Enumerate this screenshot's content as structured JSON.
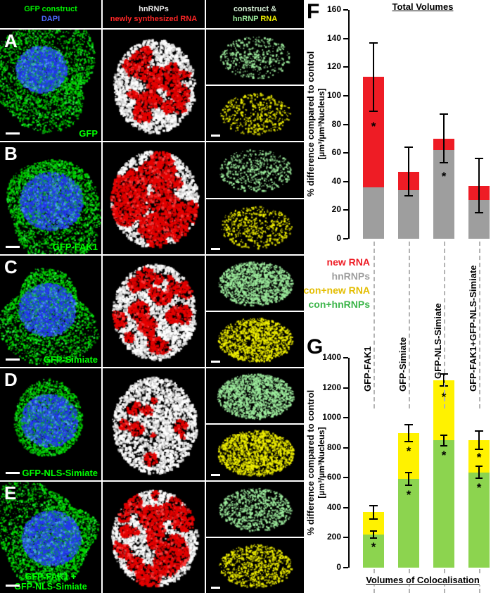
{
  "figure": {
    "panel_f_label": "F",
    "panel_g_label": "G"
  },
  "micro": {
    "headers": {
      "c1l1": "GFP construct",
      "c1l2": "DAPI",
      "c2l1": "hnRNPs",
      "c2l2": "newly synthesized RNA",
      "c3l1": "construct &",
      "c3l2a": "hnRNP",
      "c3l2b": "RNA"
    },
    "panels": [
      {
        "letter": "A",
        "label": "GFP"
      },
      {
        "letter": "B",
        "label": "GFP-FAK1"
      },
      {
        "letter": "C",
        "label": "GFP-Simiate"
      },
      {
        "letter": "D",
        "label": "GFP-NLS-Simiate"
      },
      {
        "letter": "E",
        "label": "GFP-FAK1 +\nGFP-NLS-Simiate"
      }
    ]
  },
  "legend": {
    "items": [
      {
        "label": "new RNA",
        "color": "#ee1c25"
      },
      {
        "label": "hnRNPs",
        "color": "#9e9e9e"
      },
      {
        "label": "con+new RNA",
        "color": "#e3bd00"
      },
      {
        "label": "con+hnRNPs",
        "color": "#3cb54a"
      }
    ]
  },
  "chart_data": [
    {
      "id": "F",
      "type": "bar",
      "title": "Total Volumes",
      "ylabel": "% difference compared to control",
      "ylabel_units": "[µm³/µm³Nucleus]",
      "ylim": [
        0,
        160
      ],
      "ytick_step": 20,
      "yticks": [
        0,
        20,
        40,
        60,
        80,
        100,
        120,
        140,
        160
      ],
      "grid": false,
      "categories": [
        "GFP-FAK1",
        "GFP-Simiate",
        "GFP-NLS-Simiate",
        "GFP-FAK1+GFP-NLS-Simiate"
      ],
      "series": [
        {
          "name": "hnRNPs",
          "color": "#9e9e9e",
          "values": [
            36,
            34,
            62,
            27
          ]
        },
        {
          "name": "new RNA",
          "color": "#ee1c25",
          "values": [
            77,
            13,
            8,
            10
          ]
        }
      ],
      "totals": [
        113,
        47,
        70,
        37
      ],
      "total_errors": [
        24,
        17,
        17,
        19
      ],
      "asterisks": [
        {
          "bar": 0,
          "value": 80
        },
        {
          "bar": 2,
          "value": 45
        }
      ]
    },
    {
      "id": "G",
      "type": "bar",
      "title": "Volumes of Colocalisation",
      "ylabel": "% difference compared to control",
      "ylabel_units": "[µm³/µm³Nucleus]",
      "ylim": [
        0,
        1400
      ],
      "ytick_step": 200,
      "yticks": [
        0,
        200,
        400,
        600,
        800,
        1000,
        1200,
        1400
      ],
      "grid": false,
      "categories": [
        "GFP-FAK1",
        "GFP-Simiate",
        "GFP-NLS-Simiate",
        "GFP-FAK1+GFP-NLS-Simiate"
      ],
      "series": [
        {
          "name": "con+hnRNPs",
          "color": "#8cd44f",
          "values": [
            220,
            592,
            850,
            635
          ]
        },
        {
          "name": "con+new RNA",
          "color": "#fff200",
          "values": [
            150,
            306,
            400,
            215
          ]
        }
      ],
      "totals": [
        370,
        898,
        1250,
        850
      ],
      "total_errors": [
        45,
        55,
        40,
        60
      ],
      "segment_errors": [
        25,
        43,
        35,
        40
      ],
      "asterisks": [
        {
          "bar": 0,
          "value": 150
        },
        {
          "bar": 1,
          "value": 500
        },
        {
          "bar": 1,
          "value": 790
        },
        {
          "bar": 2,
          "value": 760
        },
        {
          "bar": 2,
          "value": 1150
        },
        {
          "bar": 3,
          "value": 545
        },
        {
          "bar": 3,
          "value": 745
        }
      ]
    }
  ]
}
